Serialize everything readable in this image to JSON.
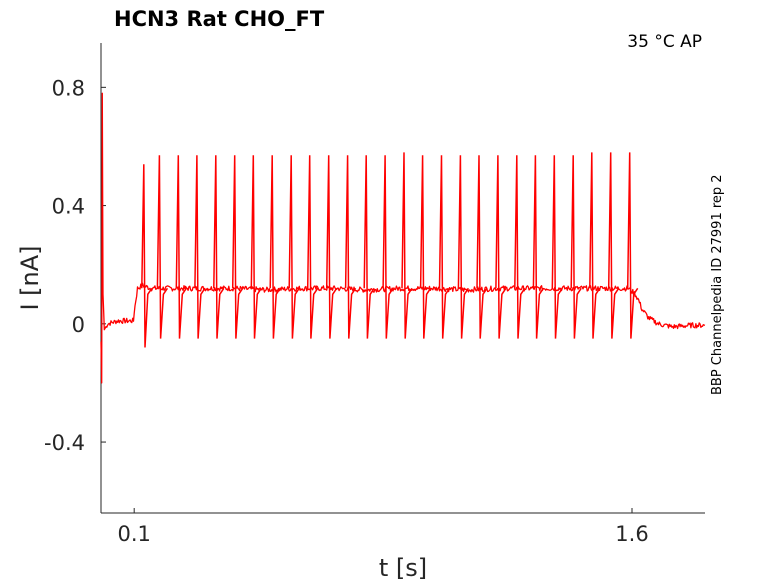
{
  "header": {
    "title": "HCN3  Rat  CHO_FT",
    "conditions": "35 °C  AP",
    "side_label": "BBP Channelpedia ID 27991 rep 2"
  },
  "chart_data": {
    "type": "line",
    "title": "HCN3  Rat  CHO_FT",
    "xlabel": "t [s]",
    "ylabel": "I [nA]",
    "xlim": [
      0.0,
      1.82
    ],
    "ylim": [
      -0.64,
      0.95
    ],
    "x_ticks": [
      0.1,
      1.6
    ],
    "x_tick_labels": [
      "0.1",
      "1.6"
    ],
    "y_ticks": [
      0.8,
      0.4,
      0,
      -0.4
    ],
    "y_tick_labels": [
      "0.8",
      "0.4",
      "0",
      "-0.4"
    ],
    "grid": false,
    "color": "#ff0000",
    "series": [
      {
        "x": [
          0.0,
          0.002,
          0.004,
          0.006,
          0.01,
          0.02,
          0.05,
          0.08,
          0.098,
          0.1,
          0.105,
          0.11,
          0.125,
          0.15,
          0.2,
          0.3,
          0.4,
          0.5,
          0.6,
          0.7,
          0.8,
          0.9,
          1.0,
          1.1,
          1.2,
          1.3,
          1.4,
          1.5,
          1.59,
          1.61,
          1.62,
          1.63,
          1.65,
          1.68,
          1.72,
          1.78,
          1.82
        ],
        "y": [
          -0.06,
          -0.2,
          0.78,
          0.1,
          -0.02,
          0.0,
          0.01,
          0.01,
          0.01,
          0.04,
          0.08,
          0.12,
          0.13,
          0.12,
          0.12,
          0.12,
          0.12,
          0.115,
          0.12,
          0.12,
          0.115,
          0.12,
          0.12,
          0.115,
          0.12,
          0.12,
          0.12,
          0.12,
          0.12,
          0.1,
          0.08,
          0.05,
          0.02,
          0.0,
          -0.01,
          -0.005,
          -0.005
        ]
      }
    ],
    "spikes": {
      "times": [
        0.129,
        0.176,
        0.233,
        0.289,
        0.346,
        0.403,
        0.459,
        0.516,
        0.573,
        0.629,
        0.686,
        0.743,
        0.799,
        0.856,
        0.913,
        0.969,
        1.026,
        1.083,
        1.139,
        1.196,
        1.253,
        1.309,
        1.366,
        1.423,
        1.479,
        1.536,
        1.593
      ],
      "peaks": [
        0.54,
        0.57,
        0.57,
        0.57,
        0.57,
        0.57,
        0.57,
        0.57,
        0.57,
        0.57,
        0.57,
        0.57,
        0.57,
        0.57,
        0.58,
        0.57,
        0.57,
        0.57,
        0.57,
        0.57,
        0.57,
        0.57,
        0.57,
        0.57,
        0.58,
        0.58,
        0.58
      ],
      "troughs": [
        -0.08,
        -0.05,
        -0.05,
        -0.05,
        -0.05,
        -0.05,
        -0.05,
        -0.05,
        -0.05,
        -0.05,
        -0.05,
        -0.05,
        -0.05,
        -0.05,
        -0.05,
        -0.05,
        -0.05,
        -0.05,
        -0.05,
        -0.05,
        -0.05,
        -0.05,
        -0.05,
        -0.05,
        -0.05,
        -0.05,
        -0.05
      ]
    }
  }
}
